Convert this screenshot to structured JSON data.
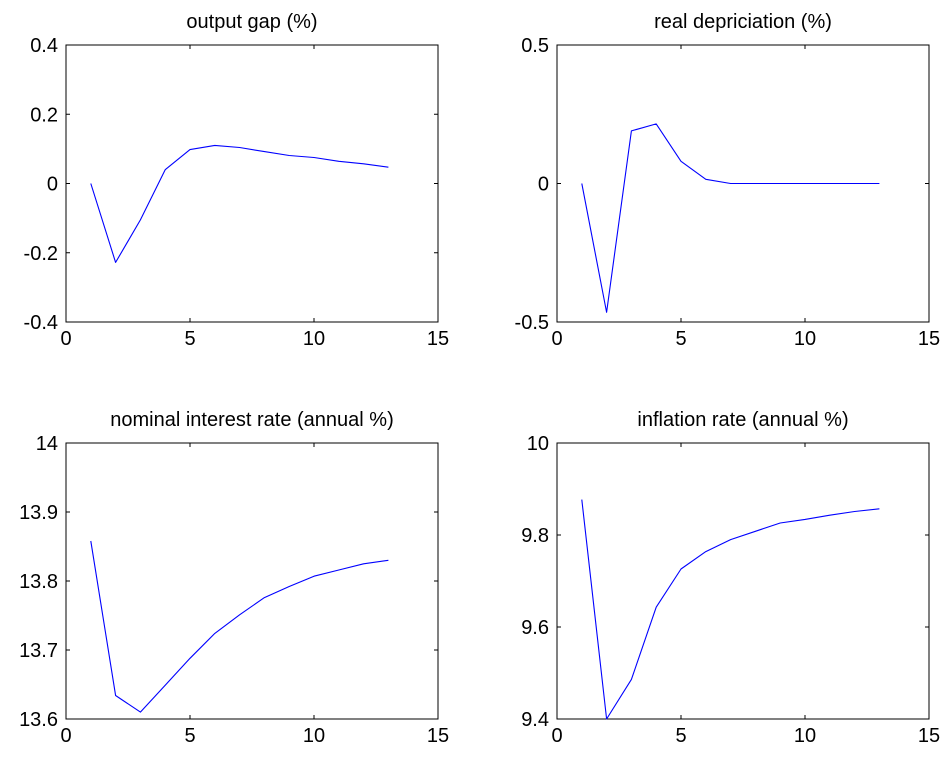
{
  "chart_data": [
    {
      "type": "line",
      "title": "output gap (%)",
      "xlim": [
        0,
        15
      ],
      "ylim": [
        -0.4,
        0.4
      ],
      "xticks": [
        "0",
        "5",
        "10",
        "15"
      ],
      "yticks": [
        "-0.4",
        "-0.2",
        "0",
        "0.2",
        "0.4"
      ],
      "series": [
        {
          "color": "#0000ff",
          "x": [
            1,
            2,
            3,
            4,
            5,
            6,
            7,
            8,
            9,
            10,
            11,
            12,
            13
          ],
          "y": [
            0.0,
            -0.228,
            -0.105,
            0.04,
            0.098,
            0.11,
            0.104,
            0.092,
            0.081,
            0.075,
            0.064,
            0.057,
            0.047
          ]
        }
      ]
    },
    {
      "type": "line",
      "title": "real depriciation (%)",
      "xlim": [
        0,
        15
      ],
      "ylim": [
        -0.5,
        0.5
      ],
      "xticks": [
        "0",
        "5",
        "10",
        "15"
      ],
      "yticks": [
        "-0.5",
        "0",
        "0.5"
      ],
      "series": [
        {
          "color": "#0000ff",
          "x": [
            1,
            2,
            3,
            4,
            5,
            6,
            7,
            8,
            9,
            10,
            11,
            12,
            13
          ],
          "y": [
            0.0,
            -0.465,
            0.19,
            0.215,
            0.08,
            0.015,
            0.0,
            0.0,
            0.0,
            0.0,
            0.0,
            0.0,
            0.0
          ]
        }
      ]
    },
    {
      "type": "line",
      "title": "nominal interest rate (annual %)",
      "xlim": [
        0,
        15
      ],
      "ylim": [
        13.6,
        14.0
      ],
      "xticks": [
        "0",
        "5",
        "10",
        "15"
      ],
      "yticks": [
        "13.6",
        "13.7",
        "13.8",
        "13.9",
        "14"
      ],
      "series": [
        {
          "color": "#0000ff",
          "x": [
            1,
            2,
            3,
            4,
            5,
            6,
            7,
            8,
            9,
            10,
            11,
            12,
            13
          ],
          "y": [
            13.858,
            13.634,
            13.61,
            13.649,
            13.688,
            13.724,
            13.751,
            13.776,
            13.792,
            13.807,
            13.816,
            13.825,
            13.83
          ]
        }
      ]
    },
    {
      "type": "line",
      "title": "inflation rate (annual %)",
      "xlim": [
        0,
        15
      ],
      "ylim": [
        9.4,
        10.0
      ],
      "xticks": [
        "0",
        "5",
        "10",
        "15"
      ],
      "yticks": [
        "9.4",
        "9.6",
        "9.8",
        "10"
      ],
      "series": [
        {
          "color": "#0000ff",
          "x": [
            1,
            2,
            3,
            4,
            5,
            6,
            7,
            8,
            9,
            10,
            11,
            12,
            13
          ],
          "y": [
            9.877,
            9.4,
            9.486,
            9.643,
            9.726,
            9.764,
            9.79,
            9.808,
            9.826,
            9.834,
            9.843,
            9.851,
            9.857
          ]
        }
      ]
    }
  ]
}
